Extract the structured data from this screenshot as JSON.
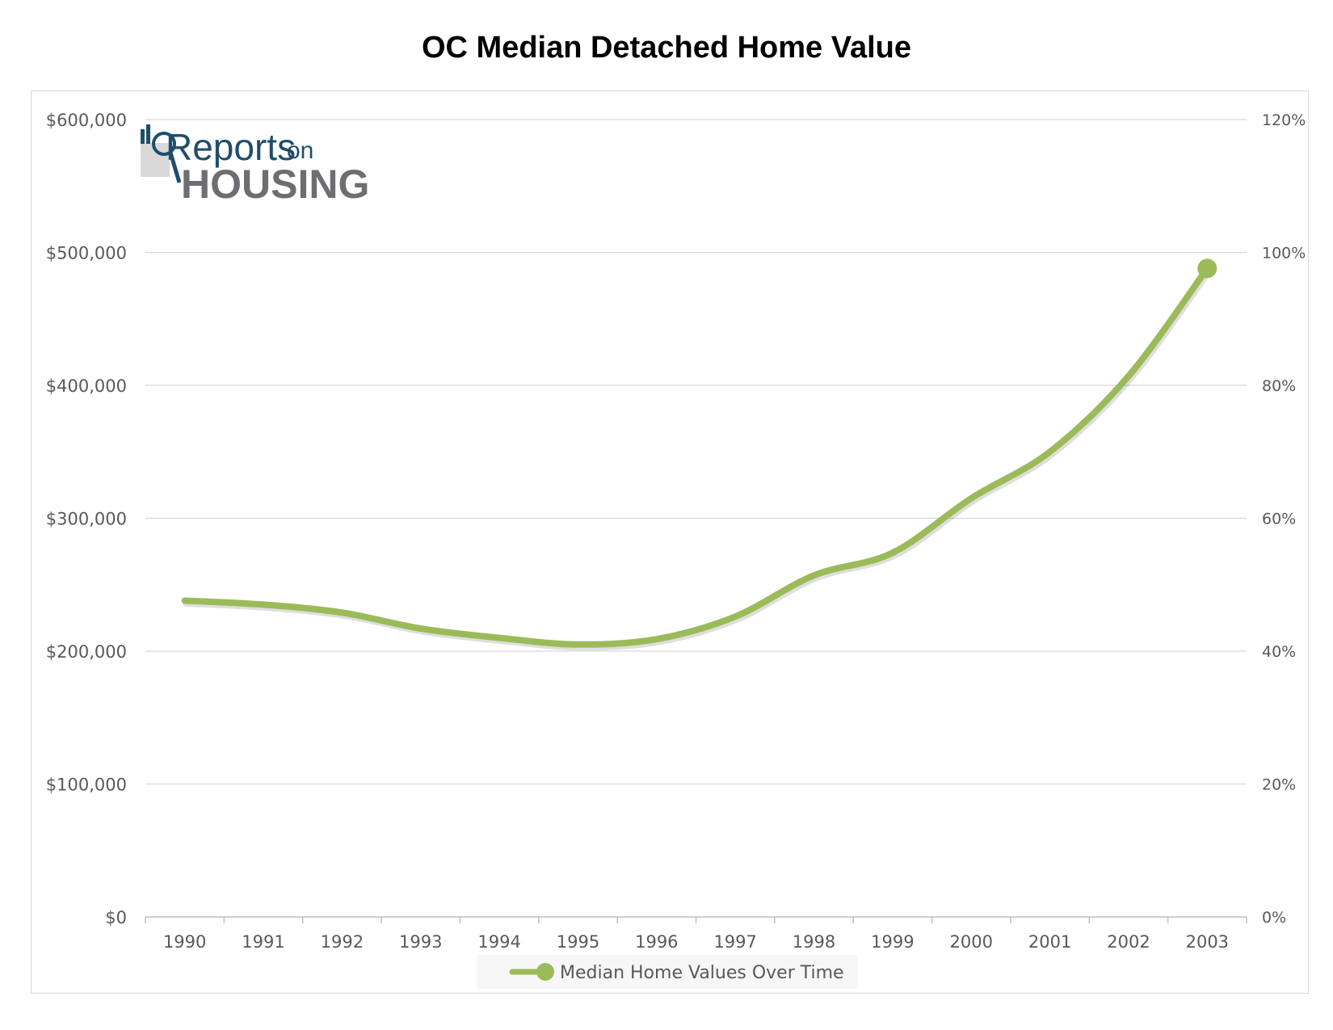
{
  "chart_data": {
    "type": "line",
    "title": "OC Median Detached Home Value",
    "x": [
      "1990",
      "1991",
      "1992",
      "1993",
      "1994",
      "1995",
      "1996",
      "1997",
      "1998",
      "1999",
      "2000",
      "2001",
      "2002",
      "2003"
    ],
    "series": [
      {
        "name": "Median Home Values Over Time",
        "values": [
          238000,
          235000,
          229000,
          217000,
          210000,
          205000,
          209000,
          226000,
          257000,
          274000,
          315000,
          350000,
          407000,
          488000
        ],
        "color": "#9bbb59"
      }
    ],
    "ylim": [
      0,
      600000
    ],
    "y_ticks": [
      "$0",
      "$100,000",
      "$200,000",
      "$300,000",
      "$400,000",
      "$500,000",
      "$600,000"
    ],
    "y2lim": [
      0,
      120
    ],
    "y2_ticks": [
      "0%",
      "20%",
      "40%",
      "60%",
      "80%",
      "100%",
      "120%"
    ],
    "grid": true,
    "legend_position": "bottom"
  },
  "logo": {
    "line1": "Reports",
    "line1_suffix": "on",
    "line2": "HOUSING"
  }
}
